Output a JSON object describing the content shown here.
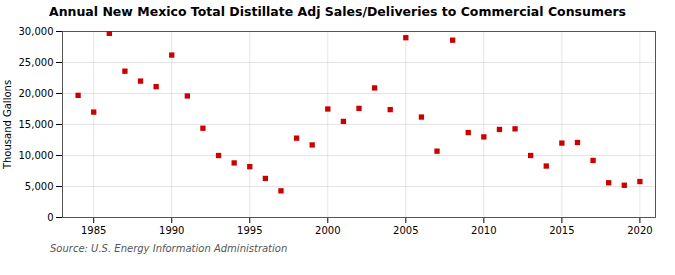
{
  "chart_data": {
    "type": "scatter",
    "title": "Annual New Mexico Total Distillate Adj Sales/Deliveries to Commercial Consumers",
    "ylabel": "Thousand Gallons",
    "annotations": [
      "Source: U.S. Energy Information Administration"
    ],
    "x": [
      1984,
      1985,
      1986,
      1987,
      1988,
      1989,
      1990,
      1991,
      1992,
      1993,
      1994,
      1995,
      1996,
      1997,
      1998,
      1999,
      2000,
      2001,
      2002,
      2003,
      2004,
      2005,
      2006,
      2007,
      2008,
      2009,
      2010,
      2011,
      2012,
      2013,
      2014,
      2015,
      2016,
      2017,
      2018,
      2019,
      2020
    ],
    "values": [
      19700,
      17000,
      29700,
      23600,
      22000,
      21100,
      26200,
      19600,
      14400,
      10000,
      8800,
      8200,
      6300,
      4300,
      12800,
      11700,
      17500,
      15500,
      17600,
      20900,
      17400,
      29000,
      16200,
      10700,
      28600,
      13700,
      13000,
      14200,
      14300,
      10000,
      8300,
      12000,
      12100,
      9200,
      5600,
      5200,
      5800
    ],
    "color": "#cc0000",
    "marker": "square",
    "xlim": [
      1983,
      2021
    ],
    "xticks": [
      1985,
      1990,
      1995,
      2000,
      2005,
      2010,
      2015,
      2020
    ],
    "ylim": [
      0,
      30000
    ],
    "yticks": [
      0,
      {
        "value": 5000,
        "label": "5,000"
      },
      {
        "value": 10000,
        "label": "10,000"
      },
      {
        "value": 15000,
        "label": "15,000"
      },
      {
        "value": 20000,
        "label": "20,000"
      },
      {
        "value": 25000,
        "label": "25,000"
      },
      {
        "value": 30000,
        "label": "30,000"
      }
    ],
    "grid": true
  }
}
